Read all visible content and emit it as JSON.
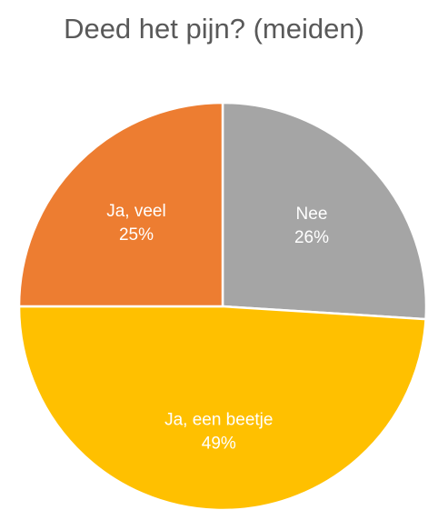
{
  "chart_data": {
    "type": "pie",
    "title": "Deed het pijn? (meiden)",
    "slices": [
      {
        "label": "Nee",
        "value": 26,
        "value_label": "26%",
        "color": "#A5A5A5"
      },
      {
        "label": "Ja, een beetje",
        "value": 49,
        "value_label": "49%",
        "color": "#FFC000"
      },
      {
        "label": "Ja, veel",
        "value": 25,
        "value_label": "25%",
        "color": "#ED7D31"
      }
    ],
    "start_angle_deg": 0,
    "direction": "clockwise",
    "legend": "none",
    "data_labels": "inside"
  }
}
